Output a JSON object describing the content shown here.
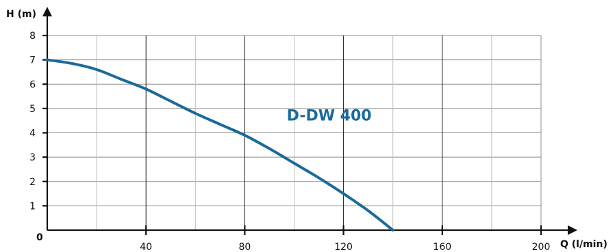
{
  "chart_data": {
    "type": "line",
    "title": "",
    "xlabel": "Q (l/min)",
    "ylabel": "H (m)",
    "origin_label": "0",
    "xlim": [
      0,
      200
    ],
    "ylim": [
      0,
      8
    ],
    "x_ticks": [
      40,
      80,
      120,
      160,
      200
    ],
    "y_ticks": [
      1,
      2,
      3,
      4,
      5,
      6,
      7,
      8
    ],
    "x_tick_labels": [
      "40",
      "80",
      "120",
      "160",
      "200"
    ],
    "y_tick_labels": [
      "1",
      "2",
      "3",
      "4",
      "5",
      "6",
      "7",
      "8"
    ],
    "grid": true,
    "series": [
      {
        "name": "D-DW 400",
        "color": "#1a6a9a",
        "x": [
          0,
          10,
          20,
          30,
          40,
          50,
          60,
          70,
          80,
          90,
          100,
          110,
          120,
          130,
          140
        ],
        "y": [
          7.0,
          6.85,
          6.6,
          6.2,
          5.8,
          5.3,
          4.8,
          4.35,
          3.9,
          3.35,
          2.75,
          2.15,
          1.5,
          0.8,
          0.0
        ]
      }
    ],
    "annotations": [
      {
        "text": "D-DW 400",
        "x": 97,
        "y": 4.5,
        "color": "#1a6a9a"
      }
    ]
  }
}
